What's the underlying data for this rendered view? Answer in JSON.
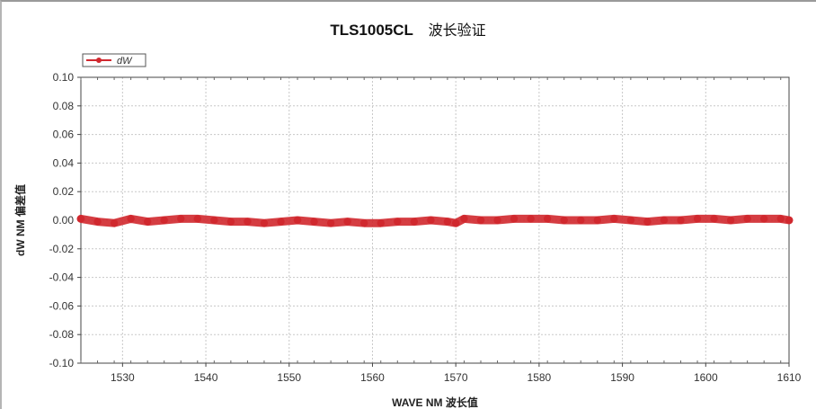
{
  "chart_data": {
    "type": "scatter",
    "title": "TLS1005CL",
    "title_cn": "波长验证",
    "xlabel": "WAVE NM 波长值",
    "ylabel": "dW NM 偏差值",
    "xlim": [
      1525,
      1610
    ],
    "ylim": [
      -0.1,
      0.1
    ],
    "x_ticks": [
      1530,
      1540,
      1550,
      1560,
      1570,
      1580,
      1590,
      1600,
      1610
    ],
    "y_ticks": [
      0.1,
      0.08,
      0.06,
      0.04,
      0.02,
      0.0,
      -0.02,
      -0.04,
      -0.06,
      -0.08,
      -0.1
    ],
    "x_tick_labels": [
      "1530",
      "1540",
      "1550",
      "1560",
      "1570",
      "1580",
      "1590",
      "1600",
      "1610"
    ],
    "y_tick_labels": [
      "0.10",
      "0.08",
      "0.06",
      "0.04",
      "0.02",
      "0.00",
      "-0.02",
      "-0.04",
      "-0.06",
      "-0.08",
      "-0.10"
    ],
    "grid": true,
    "legend_position": "top-left",
    "series": [
      {
        "name": "dW",
        "color": "#d0282e",
        "marker": "circle",
        "x": [
          1525,
          1527,
          1529,
          1531,
          1533,
          1535,
          1537,
          1539,
          1541,
          1543,
          1545,
          1547,
          1549,
          1551,
          1553,
          1555,
          1557,
          1559,
          1561,
          1563,
          1565,
          1567,
          1569,
          1570,
          1571,
          1573,
          1575,
          1577,
          1579,
          1581,
          1583,
          1585,
          1587,
          1589,
          1591,
          1593,
          1595,
          1597,
          1599,
          1601,
          1603,
          1605,
          1607,
          1609,
          1610
        ],
        "values": [
          0.001,
          -0.001,
          -0.002,
          0.001,
          -0.001,
          0.0,
          0.001,
          0.001,
          0.0,
          -0.001,
          -0.001,
          -0.002,
          -0.001,
          0.0,
          -0.001,
          -0.002,
          -0.001,
          -0.002,
          -0.002,
          -0.001,
          -0.001,
          0.0,
          -0.001,
          -0.002,
          0.001,
          0.0,
          0.0,
          0.001,
          0.001,
          0.001,
          0.0,
          0.0,
          0.0,
          0.001,
          0.0,
          -0.001,
          0.0,
          0.0,
          0.001,
          0.001,
          0.0,
          0.001,
          0.001,
          0.001,
          0.0
        ]
      }
    ]
  }
}
